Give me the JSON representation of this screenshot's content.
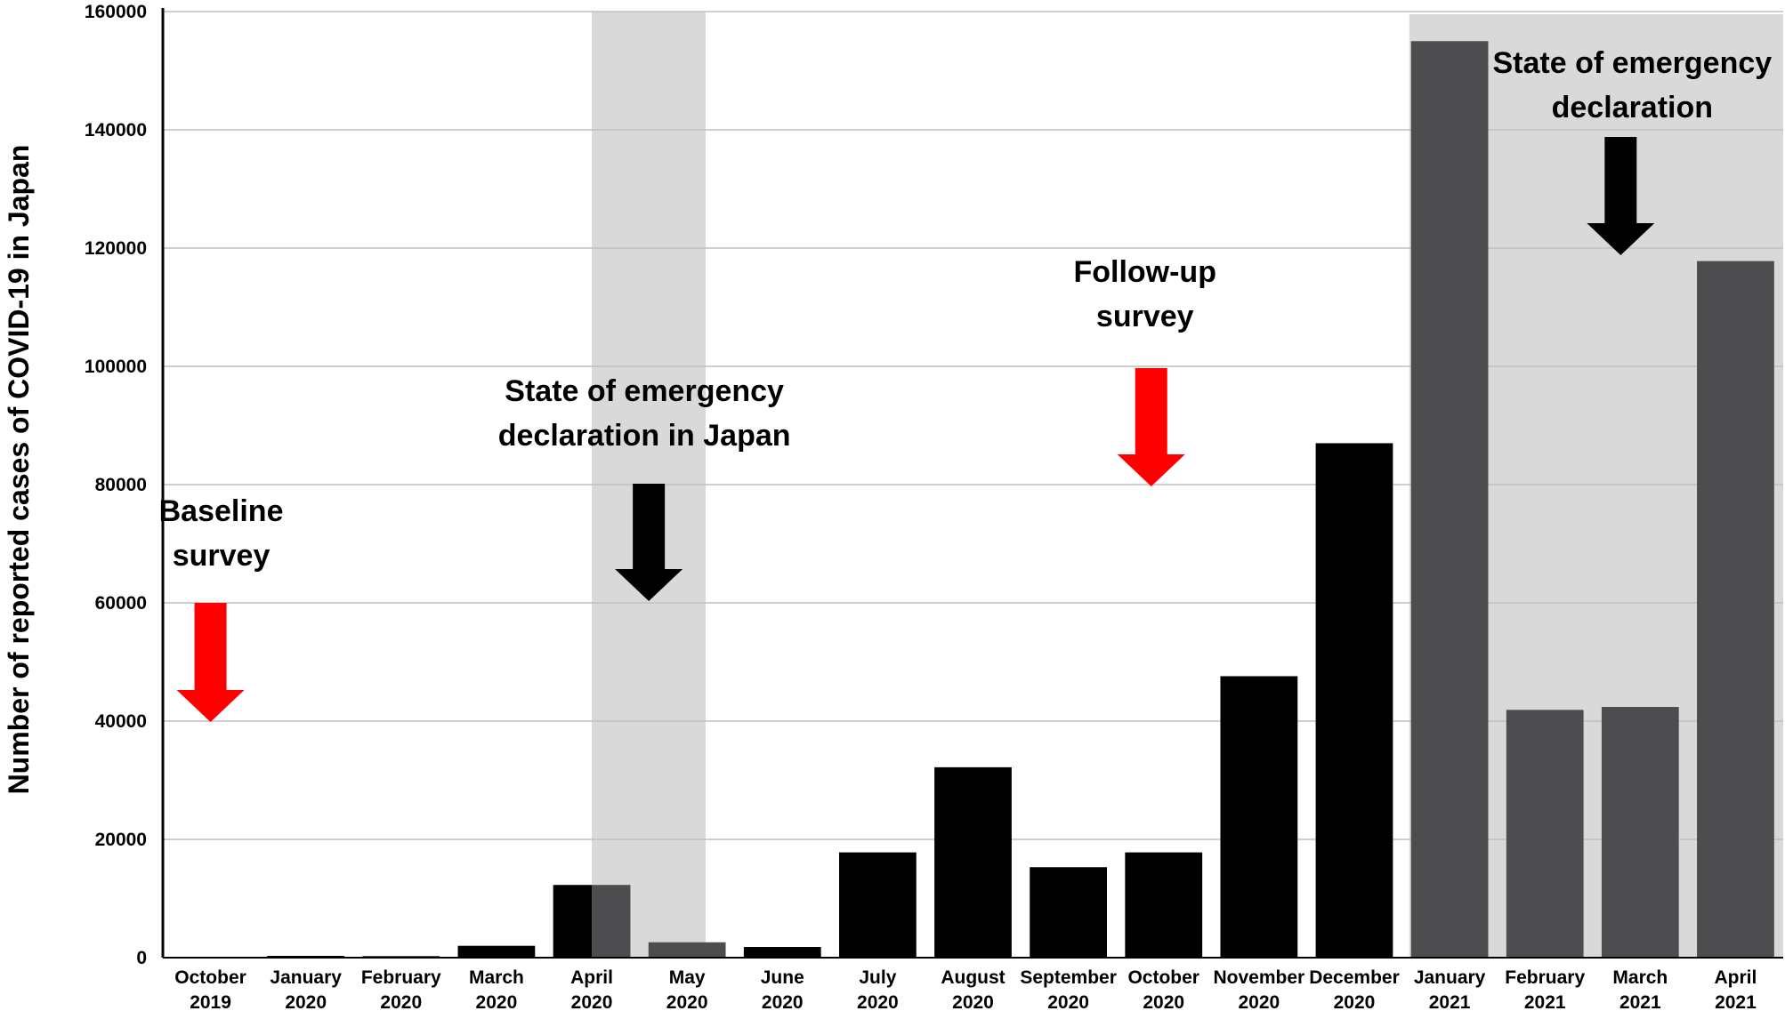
{
  "chart_data": {
    "type": "bar",
    "title": "",
    "xlabel": "",
    "ylabel": "Number of reported cases of COVID-19 in Japan",
    "ylim": [
      0,
      160000
    ],
    "yticks": [
      "0",
      "20000",
      "40000",
      "60000",
      "80000",
      "100000",
      "120000",
      "140000",
      "160000"
    ],
    "grid": true,
    "categories": [
      [
        "October",
        "2019"
      ],
      [
        "January",
        "2020"
      ],
      [
        "February",
        "2020"
      ],
      [
        "March",
        "2020"
      ],
      [
        "April",
        "2020"
      ],
      [
        "May",
        "2020"
      ],
      [
        "June",
        "2020"
      ],
      [
        "July",
        "2020"
      ],
      [
        "August",
        "2020"
      ],
      [
        "September",
        "2020"
      ],
      [
        "October",
        "2020"
      ],
      [
        "November",
        "2020"
      ],
      [
        "December",
        "2020"
      ],
      [
        "January",
        "2021"
      ],
      [
        "February",
        "2021"
      ],
      [
        "March",
        "2021"
      ],
      [
        "April",
        "2021"
      ]
    ],
    "values": [
      0,
      300,
      250,
      2000,
      12300,
      2600,
      1800,
      17800,
      32200,
      15300,
      17800,
      47600,
      87000,
      155000,
      41900,
      42400,
      117800
    ],
    "colors": {
      "bar": "#000000",
      "bar_emergency": "#4d4d4f",
      "shade": "#d9d9d9",
      "grid": "#bfbfbf",
      "arrow_survey": "#ff0000",
      "arrow_emergency": "#000000"
    },
    "bar_colors": [
      "bar",
      "bar",
      "bar",
      "bar",
      "split",
      "split",
      "bar",
      "bar",
      "bar",
      "bar",
      "bar",
      "bar",
      "bar",
      "bar_emergency",
      "bar_emergency",
      "bar_emergency",
      "bar_emergency"
    ],
    "shaded_periods": [
      {
        "from": "April 2020",
        "to": "May 2020"
      },
      {
        "from": "January 2021",
        "to": "April 2021"
      }
    ],
    "annotations": [
      {
        "lines": [
          "Baseline",
          "survey"
        ],
        "arrow": "arrow_survey",
        "at": "October 2019"
      },
      {
        "lines": [
          "State of emergency",
          "declaration in Japan"
        ],
        "arrow": "arrow_emergency",
        "at": "May 2020"
      },
      {
        "lines": [
          "Follow-up",
          "survey"
        ],
        "arrow": "arrow_survey",
        "at": "October 2020"
      },
      {
        "lines": [
          "State of emergency",
          "declaration"
        ],
        "arrow": "arrow_emergency",
        "at": "March 2021"
      }
    ]
  }
}
